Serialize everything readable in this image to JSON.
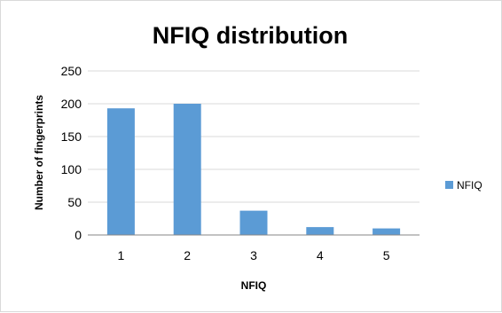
{
  "chart_data": {
    "type": "bar",
    "title": "NFIQ distribution",
    "xlabel": "NFIQ",
    "ylabel": "Number of fingerprints",
    "categories": [
      "1",
      "2",
      "3",
      "4",
      "5"
    ],
    "series": [
      {
        "name": "NFIQ",
        "values": [
          193,
          200,
          37,
          12,
          10
        ],
        "color": "#5b9bd5"
      }
    ],
    "ylim": [
      0,
      250
    ],
    "yticks": [
      0,
      50,
      100,
      150,
      200,
      250
    ],
    "grid": true,
    "legend": "right"
  }
}
